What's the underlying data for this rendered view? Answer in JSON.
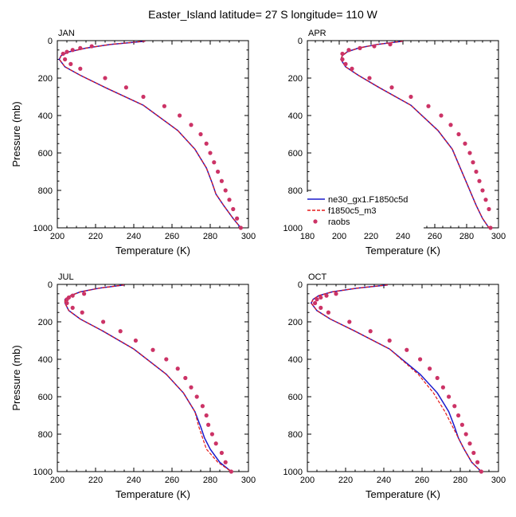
{
  "title": "Easter_Island  latitude= 27 S longitude= 110 W",
  "colors": {
    "model1": "#1a1acc",
    "model2": "#e61a1a",
    "obs": "#cc3366"
  },
  "legend": {
    "panel": 1,
    "items": [
      {
        "label": "ne30_gx1.F1850c5d",
        "style": "solid-line",
        "color": "#1a1acc"
      },
      {
        "label": "f1850c5_m3",
        "style": "dashed-line",
        "color": "#e61a1a"
      },
      {
        "label": "raobs",
        "style": "marker",
        "color": "#cc3366"
      }
    ]
  },
  "chart_data": [
    {
      "type": "line",
      "panel_label": "JAN",
      "xlabel": "Temperature (K)",
      "ylabel": "Pressure (mb)",
      "xlim": [
        200,
        300
      ],
      "ylim": [
        1000,
        0
      ],
      "y_inverted": true,
      "xticks": [
        200,
        220,
        240,
        260,
        280,
        300
      ],
      "yticks": [
        0,
        200,
        400,
        600,
        800,
        1000
      ],
      "series": [
        {
          "name": "ne30_gx1.F1850c5d",
          "style": "solid",
          "x": [
            246,
            228,
            215,
            206,
            202,
            201,
            204,
            212,
            225,
            245,
            263,
            272,
            278,
            281,
            283,
            287,
            292,
            296
          ],
          "y": [
            3,
            20,
            40,
            60,
            80,
            100,
            140,
            185,
            250,
            345,
            480,
            580,
            680,
            760,
            820,
            880,
            950,
            1000
          ]
        },
        {
          "name": "f1850c5_m3",
          "style": "dashed",
          "x": [
            246,
            228,
            215,
            206,
            202,
            201,
            204,
            212,
            225,
            245,
            263,
            272,
            278,
            281,
            283,
            287,
            292,
            296
          ],
          "y": [
            3,
            20,
            40,
            60,
            80,
            100,
            140,
            185,
            250,
            345,
            480,
            580,
            680,
            760,
            820,
            880,
            950,
            1000
          ]
        },
        {
          "name": "raobs",
          "style": "markers",
          "x": [
            218,
            212,
            208,
            205,
            203,
            204,
            207,
            212,
            225,
            236,
            245,
            256,
            264,
            270,
            275,
            278,
            280,
            282,
            284,
            286,
            288,
            290,
            292,
            294,
            296
          ],
          "y": [
            30,
            40,
            50,
            60,
            70,
            100,
            125,
            150,
            200,
            250,
            300,
            350,
            400,
            450,
            500,
            550,
            600,
            650,
            700,
            750,
            800,
            850,
            900,
            950,
            1000
          ]
        }
      ]
    },
    {
      "type": "line",
      "panel_label": "APR",
      "xlabel": "Temperature (K)",
      "ylabel": "",
      "xlim": [
        180,
        300
      ],
      "ylim": [
        1000,
        0
      ],
      "y_inverted": true,
      "xticks": [
        180,
        200,
        220,
        240,
        260,
        280,
        300
      ],
      "yticks": [
        0,
        200,
        400,
        600,
        800,
        1000
      ],
      "series": [
        {
          "name": "ne30_gx1.F1850c5d",
          "style": "solid",
          "x": [
            240,
            224,
            212,
            205,
            202,
            201,
            204,
            212,
            225,
            245,
            262,
            271,
            276,
            280,
            283,
            286,
            290,
            294
          ],
          "y": [
            3,
            20,
            40,
            60,
            80,
            100,
            140,
            185,
            250,
            345,
            480,
            580,
            680,
            760,
            820,
            880,
            950,
            1000
          ]
        },
        {
          "name": "f1850c5_m3",
          "style": "dashed",
          "x": [
            240,
            224,
            212,
            205,
            202,
            201,
            204,
            212,
            225,
            245,
            262,
            271,
            276,
            280,
            283,
            286,
            290,
            294
          ],
          "y": [
            3,
            20,
            40,
            60,
            80,
            100,
            140,
            185,
            250,
            345,
            480,
            580,
            680,
            760,
            820,
            880,
            950,
            1000
          ]
        },
        {
          "name": "raobs",
          "style": "markers",
          "x": [
            232,
            222,
            213,
            206,
            202,
            202,
            204,
            208,
            219,
            233,
            245,
            256,
            264,
            270,
            275,
            279,
            282,
            284,
            286,
            288,
            290,
            292,
            294,
            295
          ],
          "y": [
            20,
            30,
            40,
            50,
            70,
            100,
            125,
            150,
            200,
            250,
            300,
            350,
            400,
            450,
            500,
            550,
            600,
            650,
            700,
            750,
            800,
            850,
            900,
            1000
          ]
        }
      ]
    },
    {
      "type": "line",
      "panel_label": "JUL",
      "xlabel": "Temperature (K)",
      "ylabel": "Pressure (mb)",
      "xlim": [
        200,
        300
      ],
      "ylim": [
        1000,
        0
      ],
      "y_inverted": true,
      "xticks": [
        200,
        220,
        240,
        260,
        280,
        300
      ],
      "yticks": [
        0,
        200,
        400,
        600,
        800,
        1000
      ],
      "series": [
        {
          "name": "ne30_gx1.F1850c5d",
          "style": "solid",
          "x": [
            235,
            222,
            212,
            207,
            204,
            204,
            206,
            212,
            224,
            240,
            257,
            266,
            272,
            275,
            277,
            280,
            285,
            291
          ],
          "y": [
            3,
            20,
            40,
            60,
            80,
            100,
            140,
            185,
            250,
            345,
            480,
            580,
            680,
            760,
            820,
            880,
            950,
            1000
          ]
        },
        {
          "name": "f1850c5_m3",
          "style": "dashed",
          "x": [
            235,
            222,
            212,
            207,
            204,
            204,
            206,
            212,
            224,
            240,
            257,
            266,
            272,
            274,
            276,
            278,
            284,
            291
          ],
          "y": [
            3,
            20,
            40,
            60,
            80,
            100,
            140,
            185,
            250,
            345,
            480,
            580,
            680,
            760,
            820,
            880,
            950,
            1000
          ]
        },
        {
          "name": "raobs",
          "style": "markers",
          "x": [
            214,
            208,
            206,
            205,
            205,
            208,
            213,
            224,
            233,
            241,
            250,
            257,
            263,
            267,
            270,
            273,
            276,
            278,
            279,
            281,
            283,
            286,
            288,
            291
          ],
          "y": [
            50,
            60,
            70,
            80,
            100,
            125,
            150,
            200,
            250,
            300,
            350,
            400,
            450,
            500,
            550,
            600,
            650,
            700,
            750,
            800,
            850,
            900,
            950,
            1000
          ]
        }
      ]
    },
    {
      "type": "line",
      "panel_label": "OCT",
      "xlabel": "Temperature (K)",
      "ylabel": "",
      "xlim": [
        200,
        300
      ],
      "ylim": [
        1000,
        0
      ],
      "y_inverted": true,
      "xticks": [
        200,
        220,
        240,
        260,
        280,
        300
      ],
      "yticks": [
        0,
        200,
        400,
        600,
        800,
        1000
      ],
      "series": [
        {
          "name": "ne30_gx1.F1850c5d",
          "style": "solid",
          "x": [
            242,
            226,
            213,
            206,
            203,
            202,
            205,
            212,
            225,
            243,
            259,
            268,
            274,
            277,
            279,
            282,
            286,
            291
          ],
          "y": [
            3,
            20,
            40,
            60,
            80,
            100,
            140,
            185,
            250,
            345,
            480,
            580,
            680,
            760,
            820,
            880,
            950,
            1000
          ]
        },
        {
          "name": "f1850c5_m3",
          "style": "dashed",
          "x": [
            242,
            226,
            213,
            206,
            203,
            202,
            205,
            212,
            225,
            243,
            258,
            266,
            272,
            276,
            279,
            282,
            286,
            291
          ],
          "y": [
            3,
            20,
            40,
            60,
            80,
            100,
            140,
            185,
            250,
            345,
            480,
            580,
            680,
            760,
            820,
            880,
            950,
            1000
          ]
        },
        {
          "name": "raobs",
          "style": "markers",
          "x": [
            215,
            210,
            207,
            205,
            204,
            207,
            211,
            222,
            233,
            243,
            252,
            259,
            264,
            268,
            271,
            274,
            277,
            279,
            281,
            283,
            285,
            287,
            289,
            291
          ],
          "y": [
            50,
            60,
            70,
            80,
            100,
            125,
            150,
            200,
            250,
            300,
            350,
            400,
            450,
            500,
            550,
            600,
            650,
            700,
            750,
            800,
            850,
            900,
            950,
            1000
          ]
        }
      ]
    }
  ]
}
